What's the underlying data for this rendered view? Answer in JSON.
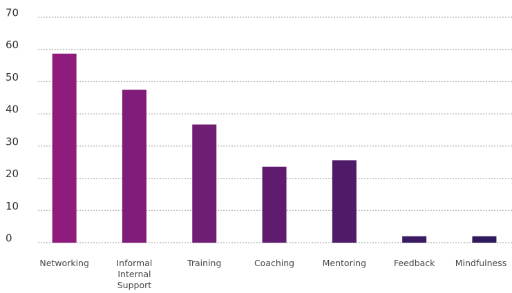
{
  "chart_data": {
    "type": "bar",
    "categories": [
      "Networking",
      "Informal Internal Support",
      "Training",
      "Coaching",
      "Mentoring",
      "Feedback",
      "Mindfulness"
    ],
    "values": [
      58.7,
      47.5,
      36.7,
      23.6,
      25.6,
      2,
      2
    ],
    "colors": [
      "#8f1b7d",
      "#801c79",
      "#6f1e74",
      "#5f1c6f",
      "#4f1b69",
      "#3b1a61",
      "#2f1a5b"
    ],
    "ylim": [
      0,
      70
    ],
    "yticks": [
      0,
      10,
      20,
      30,
      40,
      50,
      60,
      70
    ],
    "grid": true
  }
}
